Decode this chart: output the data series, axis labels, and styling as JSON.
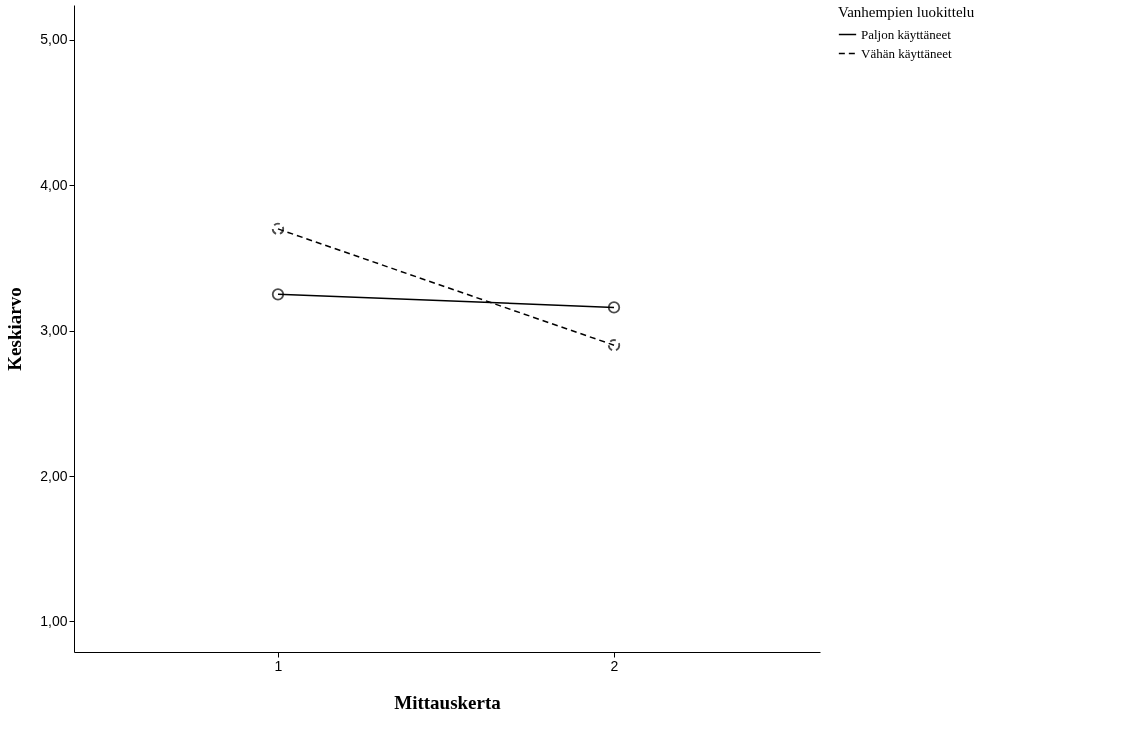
{
  "chart_data": {
    "type": "line",
    "xlabel": "Mittauskerta",
    "ylabel": "Keskiarvo",
    "legend_title": "Vanhempien luokittelu",
    "categories": [
      "1",
      "2"
    ],
    "series": [
      {
        "name": "Paljon käyttäneet",
        "color": "#000000",
        "values": [
          3.25,
          3.16
        ],
        "line_style": "solid"
      },
      {
        "name": "Vähän käyttäneet",
        "color": "#000000",
        "values": [
          3.7,
          2.9
        ],
        "line_style": "dashed"
      }
    ],
    "ylim": [
      0.79,
      5.24
    ],
    "yticks": [
      {
        "value": 1,
        "label": "1,00"
      },
      {
        "value": 2,
        "label": "2,00"
      },
      {
        "value": 3,
        "label": "3,00"
      },
      {
        "value": 4,
        "label": "4,00"
      },
      {
        "value": 5,
        "label": "5,00"
      }
    ],
    "marker": "circle",
    "grid": false,
    "legend": "top right"
  }
}
